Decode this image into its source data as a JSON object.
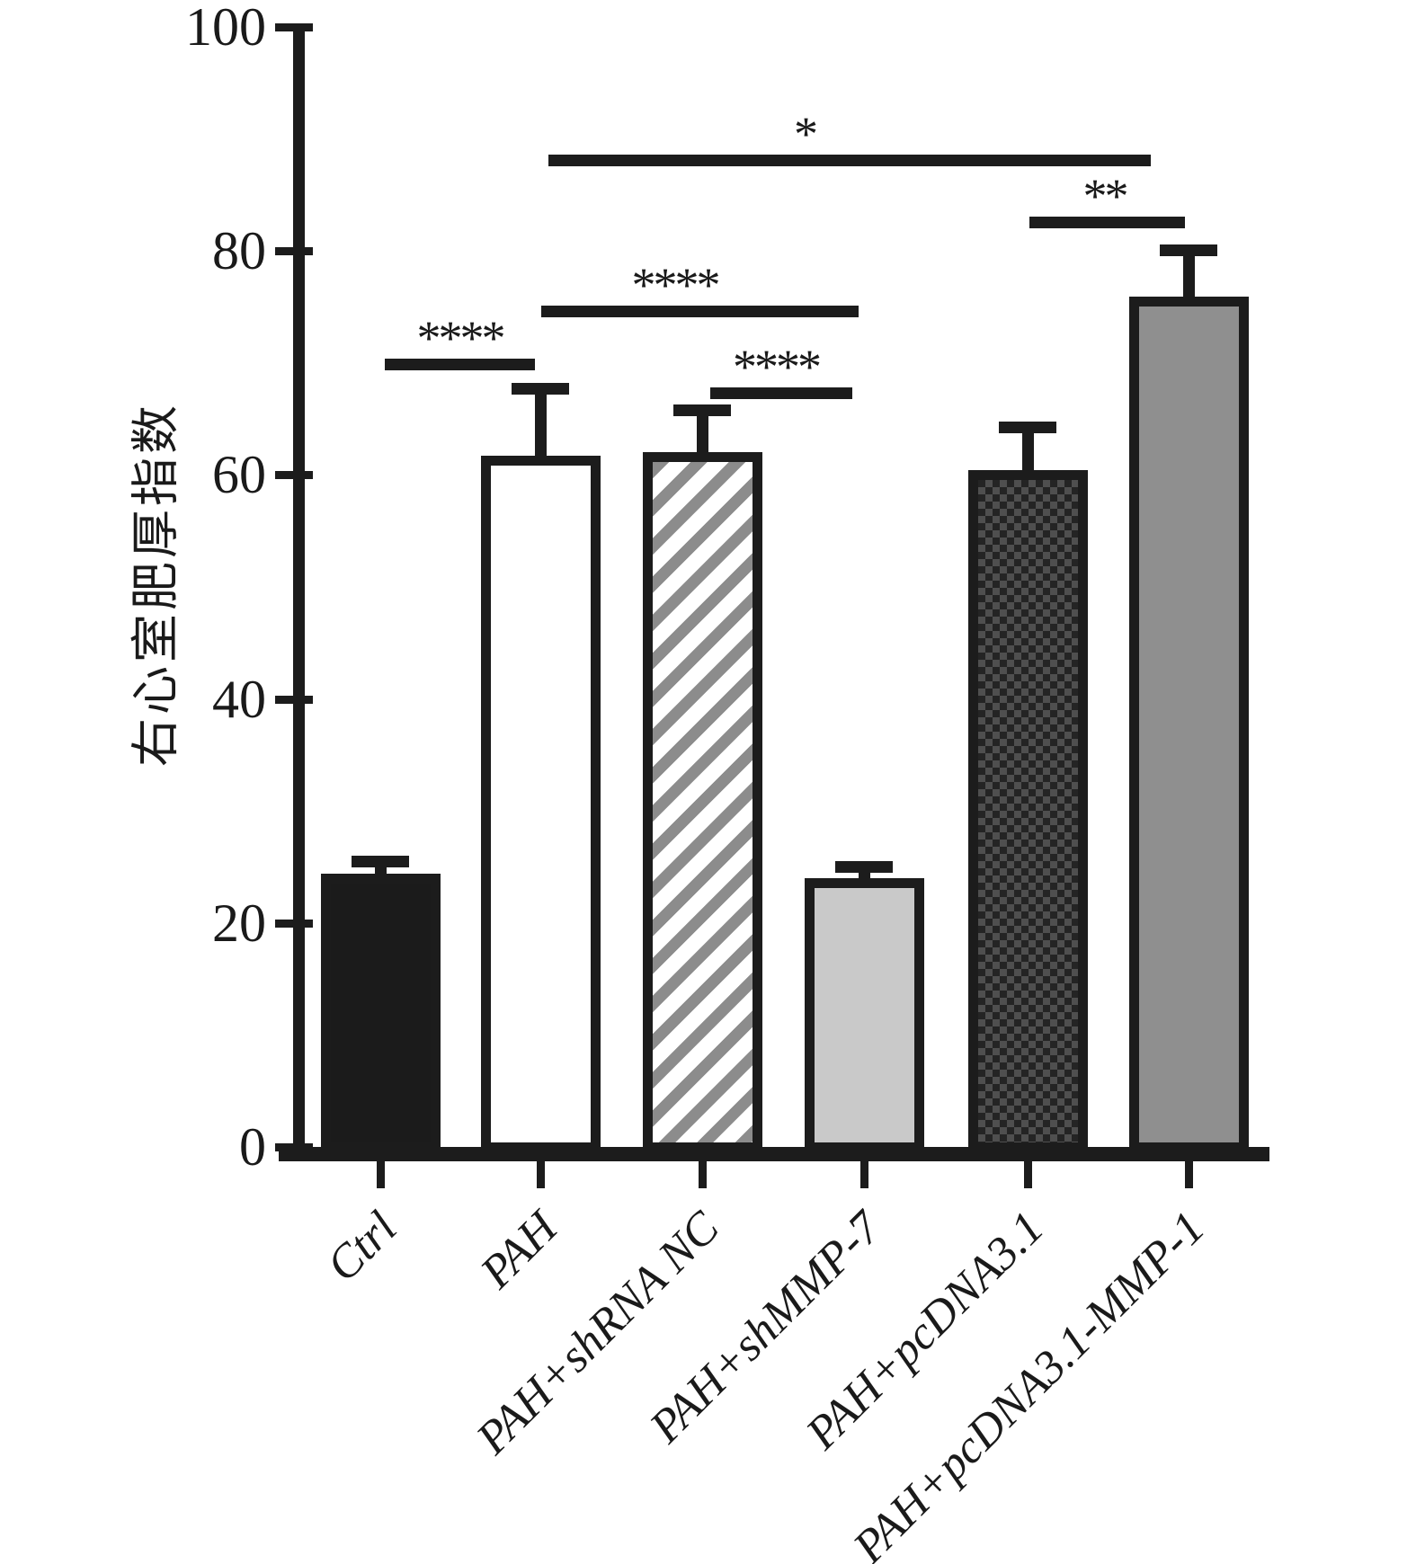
{
  "chart_data": {
    "type": "bar",
    "title": "",
    "ylabel": "右心室肥厚指数",
    "xlabel": "",
    "ylim": [
      0,
      100
    ],
    "yticks": [
      0,
      20,
      40,
      60,
      80,
      100
    ],
    "grid": false,
    "legend": null,
    "categories": [
      "Ctrl",
      "PAH",
      "PAH+shRNA NC",
      "PAH+shMMP-7",
      "PAH+pcDNA3.1",
      "PAH+pcDNA3.1-MMP-1"
    ],
    "values": [
      24.4,
      61.7,
      62.0,
      24.0,
      60.4,
      75.9
    ],
    "errors_sd_upper": [
      1.6,
      6.5,
      4.3,
      1.5,
      4.4,
      4.7
    ],
    "error_bar_style": "upper-only T-cap",
    "bar_styles": [
      "solid-black",
      "white-outline",
      "diagonal-hatch",
      "light-gray",
      "dark-checker",
      "solid-gray"
    ],
    "significance_brackets": [
      {
        "from": "Ctrl",
        "to": "PAH",
        "label": "****",
        "height": 69.9
      },
      {
        "from": "PAH",
        "to": "PAH+shMMP-7",
        "label": "****",
        "height": 74.6
      },
      {
        "from": "PAH+shRNA NC",
        "to": "PAH+shMMP-7",
        "label": "****",
        "height": 67.3
      },
      {
        "from": "PAH",
        "to": "PAH+pcDNA3.1-MMP-1",
        "label": "*",
        "height": 88.1
      },
      {
        "from": "PAH+pcDNA3.1",
        "to": "PAH+pcDNA3.1-MMP-1",
        "label": "**",
        "height": 82.6
      }
    ],
    "colors": {
      "axis_color": "#1c1c1c",
      "bar_outline": "#1c1c1c",
      "solid_black": "#1b1b1b",
      "light_gray": "#c9c9c9",
      "solid_gray": "#8f8f8f",
      "hatch_stripe": "#8c8c8c",
      "checker_base": "#242424",
      "checker_square": "#4f4f4f",
      "background": "#ffffff"
    }
  }
}
